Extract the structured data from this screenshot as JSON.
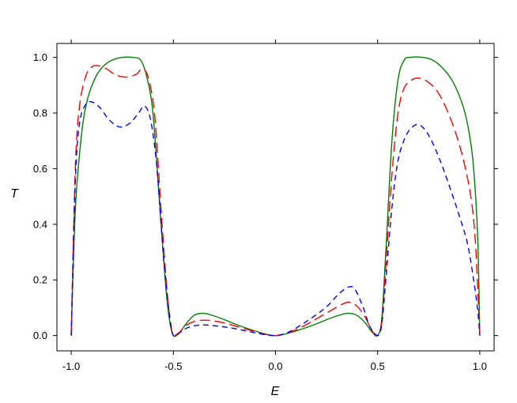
{
  "chart_data": {
    "type": "line",
    "title": "",
    "xlabel": "E",
    "ylabel": "T",
    "xlim": [
      -1.07,
      1.07
    ],
    "ylim": [
      -0.055,
      1.05
    ],
    "grid": false,
    "legend": "none",
    "x_ticks": [
      -1.0,
      -0.5,
      0.0,
      0.5,
      1.0
    ],
    "x_tick_labels": [
      "-1.0",
      "-0.5",
      "0.0",
      "0.5",
      "1.0"
    ],
    "y_ticks": [
      0.0,
      0.2,
      0.4,
      0.6,
      0.8,
      1.0
    ],
    "y_tick_labels": [
      "0.0",
      "0.2",
      "0.4",
      "0.6",
      "0.8",
      "1.0"
    ],
    "series": [
      {
        "color": "#008000",
        "dash": "solid",
        "points": [
          [
            -1.0,
            0.0
          ],
          [
            -0.98,
            0.45
          ],
          [
            -0.95,
            0.72
          ],
          [
            -0.92,
            0.85
          ],
          [
            -0.88,
            0.93
          ],
          [
            -0.84,
            0.97
          ],
          [
            -0.8,
            0.99
          ],
          [
            -0.75,
            1.0
          ],
          [
            -0.7,
            1.0
          ],
          [
            -0.66,
            0.99
          ],
          [
            -0.63,
            0.93
          ],
          [
            -0.6,
            0.8
          ],
          [
            -0.57,
            0.5
          ],
          [
            -0.54,
            0.2
          ],
          [
            -0.52,
            0.06
          ],
          [
            -0.5,
            0.0
          ],
          [
            -0.47,
            0.01
          ],
          [
            -0.44,
            0.04
          ],
          [
            -0.4,
            0.072
          ],
          [
            -0.36,
            0.08
          ],
          [
            -0.32,
            0.075
          ],
          [
            -0.26,
            0.06
          ],
          [
            -0.2,
            0.042
          ],
          [
            -0.14,
            0.026
          ],
          [
            -0.08,
            0.012
          ],
          [
            -0.04,
            0.004
          ],
          [
            0.0,
            0.0
          ],
          [
            0.04,
            0.004
          ],
          [
            0.08,
            0.012
          ],
          [
            0.14,
            0.026
          ],
          [
            0.2,
            0.042
          ],
          [
            0.26,
            0.06
          ],
          [
            0.32,
            0.075
          ],
          [
            0.36,
            0.08
          ],
          [
            0.4,
            0.072
          ],
          [
            0.44,
            0.045
          ],
          [
            0.47,
            0.015
          ],
          [
            0.5,
            0.0
          ],
          [
            0.52,
            0.06
          ],
          [
            0.54,
            0.3
          ],
          [
            0.57,
            0.7
          ],
          [
            0.6,
            0.92
          ],
          [
            0.63,
            0.99
          ],
          [
            0.66,
            1.0
          ],
          [
            0.72,
            1.0
          ],
          [
            0.77,
            0.99
          ],
          [
            0.82,
            0.96
          ],
          [
            0.87,
            0.91
          ],
          [
            0.92,
            0.82
          ],
          [
            0.95,
            0.72
          ],
          [
            0.97,
            0.6
          ],
          [
            0.99,
            0.35
          ],
          [
            1.0,
            0.0
          ]
        ]
      },
      {
        "color": "#ff0000",
        "dash": "long",
        "points": [
          [
            -1.0,
            0.0
          ],
          [
            -0.98,
            0.6
          ],
          [
            -0.96,
            0.82
          ],
          [
            -0.93,
            0.93
          ],
          [
            -0.9,
            0.965
          ],
          [
            -0.87,
            0.97
          ],
          [
            -0.83,
            0.96
          ],
          [
            -0.79,
            0.94
          ],
          [
            -0.75,
            0.93
          ],
          [
            -0.72,
            0.93
          ],
          [
            -0.68,
            0.94
          ],
          [
            -0.65,
            0.96
          ],
          [
            -0.62,
            0.92
          ],
          [
            -0.59,
            0.78
          ],
          [
            -0.56,
            0.45
          ],
          [
            -0.53,
            0.15
          ],
          [
            -0.51,
            0.03
          ],
          [
            -0.5,
            0.0
          ],
          [
            -0.47,
            0.012
          ],
          [
            -0.44,
            0.035
          ],
          [
            -0.4,
            0.05
          ],
          [
            -0.36,
            0.055
          ],
          [
            -0.32,
            0.054
          ],
          [
            -0.26,
            0.047
          ],
          [
            -0.2,
            0.035
          ],
          [
            -0.14,
            0.022
          ],
          [
            -0.08,
            0.01
          ],
          [
            -0.04,
            0.003
          ],
          [
            0.0,
            0.0
          ],
          [
            0.04,
            0.005
          ],
          [
            0.08,
            0.015
          ],
          [
            0.14,
            0.035
          ],
          [
            0.2,
            0.06
          ],
          [
            0.26,
            0.085
          ],
          [
            0.32,
            0.11
          ],
          [
            0.36,
            0.12
          ],
          [
            0.4,
            0.105
          ],
          [
            0.44,
            0.065
          ],
          [
            0.47,
            0.02
          ],
          [
            0.5,
            0.0
          ],
          [
            0.52,
            0.05
          ],
          [
            0.54,
            0.25
          ],
          [
            0.57,
            0.58
          ],
          [
            0.6,
            0.8
          ],
          [
            0.63,
            0.89
          ],
          [
            0.67,
            0.92
          ],
          [
            0.7,
            0.925
          ],
          [
            0.74,
            0.915
          ],
          [
            0.79,
            0.88
          ],
          [
            0.84,
            0.81
          ],
          [
            0.89,
            0.71
          ],
          [
            0.93,
            0.6
          ],
          [
            0.96,
            0.48
          ],
          [
            0.98,
            0.32
          ],
          [
            1.0,
            0.0
          ]
        ]
      },
      {
        "color": "#0000ff",
        "dash": "short",
        "points": [
          [
            -1.0,
            0.0
          ],
          [
            -0.98,
            0.55
          ],
          [
            -0.96,
            0.76
          ],
          [
            -0.93,
            0.83
          ],
          [
            -0.9,
            0.84
          ],
          [
            -0.86,
            0.82
          ],
          [
            -0.82,
            0.78
          ],
          [
            -0.78,
            0.755
          ],
          [
            -0.75,
            0.75
          ],
          [
            -0.71,
            0.765
          ],
          [
            -0.67,
            0.8
          ],
          [
            -0.64,
            0.825
          ],
          [
            -0.61,
            0.77
          ],
          [
            -0.58,
            0.6
          ],
          [
            -0.55,
            0.3
          ],
          [
            -0.52,
            0.08
          ],
          [
            -0.5,
            0.0
          ],
          [
            -0.47,
            0.01
          ],
          [
            -0.44,
            0.025
          ],
          [
            -0.4,
            0.035
          ],
          [
            -0.36,
            0.038
          ],
          [
            -0.32,
            0.037
          ],
          [
            -0.26,
            0.032
          ],
          [
            -0.2,
            0.025
          ],
          [
            -0.14,
            0.016
          ],
          [
            -0.08,
            0.007
          ],
          [
            -0.04,
            0.002
          ],
          [
            0.0,
            0.0
          ],
          [
            0.04,
            0.006
          ],
          [
            0.08,
            0.018
          ],
          [
            0.14,
            0.045
          ],
          [
            0.2,
            0.075
          ],
          [
            0.26,
            0.11
          ],
          [
            0.31,
            0.15
          ],
          [
            0.36,
            0.175
          ],
          [
            0.39,
            0.165
          ],
          [
            0.43,
            0.1
          ],
          [
            0.46,
            0.035
          ],
          [
            0.5,
            0.0
          ],
          [
            0.52,
            0.04
          ],
          [
            0.54,
            0.2
          ],
          [
            0.57,
            0.46
          ],
          [
            0.6,
            0.63
          ],
          [
            0.64,
            0.72
          ],
          [
            0.68,
            0.755
          ],
          [
            0.71,
            0.755
          ],
          [
            0.75,
            0.72
          ],
          [
            0.8,
            0.64
          ],
          [
            0.85,
            0.54
          ],
          [
            0.9,
            0.43
          ],
          [
            0.94,
            0.33
          ],
          [
            0.97,
            0.2
          ],
          [
            0.99,
            0.09
          ],
          [
            1.0,
            0.0
          ]
        ]
      }
    ]
  }
}
